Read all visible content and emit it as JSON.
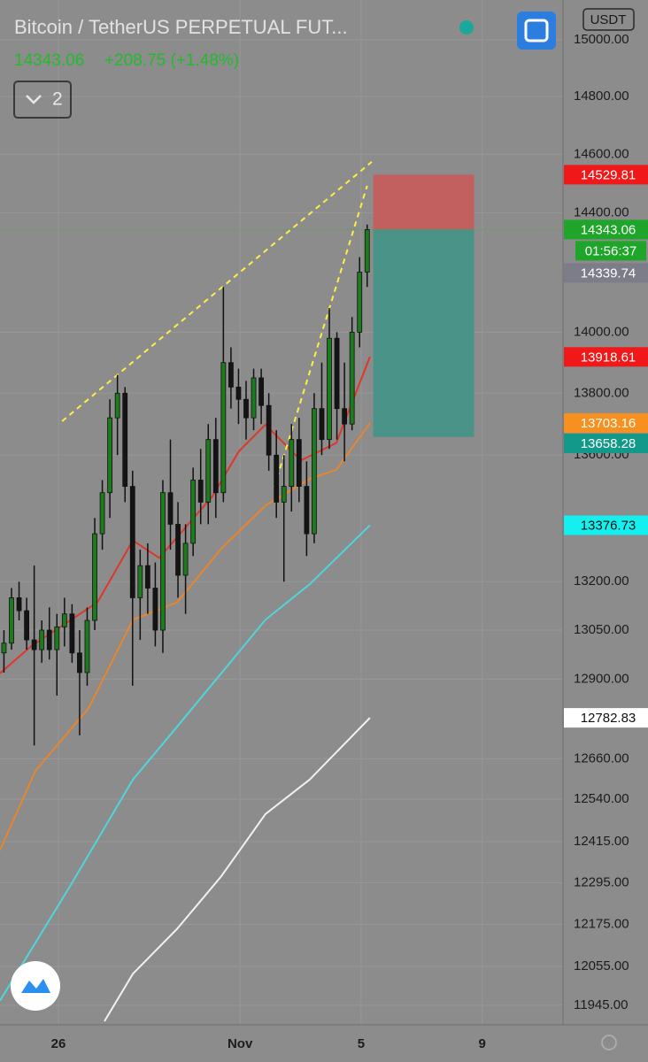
{
  "header": {
    "title": "Bitcoin / TetherUS PERPETUAL FUT...",
    "price": "14343.06",
    "change": "+208.75 (+1.48%)",
    "interval_badge": "2",
    "currency": "USDT"
  },
  "chart_data": {
    "type": "candlestick",
    "x": [
      24.2,
      24.45,
      24.7,
      24.95,
      25.2,
      25.45,
      25.7,
      25.95,
      26.2,
      26.45,
      26.7,
      26.95,
      27.2,
      27.45,
      27.7,
      27.95,
      28.2,
      28.45,
      28.7,
      28.95,
      29.2,
      29.45,
      29.7,
      29.95,
      30.2,
      30.45,
      30.7,
      30.95,
      31.2,
      31.45,
      31.7,
      31.95,
      32.2,
      32.45,
      32.7,
      32.95,
      33.2,
      33.45,
      33.7,
      33.95,
      34.2,
      34.45,
      34.7,
      34.95,
      35.2,
      35.45,
      35.7,
      35.95,
      36.2
    ],
    "ohlc": [
      [
        12980,
        13050,
        12920,
        13010
      ],
      [
        13010,
        13180,
        12990,
        13150
      ],
      [
        13150,
        13200,
        13080,
        13110
      ],
      [
        13110,
        13150,
        12990,
        13020
      ],
      [
        13020,
        13250,
        12700,
        12990
      ],
      [
        12990,
        13080,
        12950,
        13050
      ],
      [
        13050,
        13120,
        12960,
        12990
      ],
      [
        12990,
        13100,
        12850,
        13060
      ],
      [
        13060,
        13150,
        13000,
        13100
      ],
      [
        13100,
        13130,
        12950,
        12980
      ],
      [
        12980,
        13050,
        12730,
        12920
      ],
      [
        12920,
        13120,
        12880,
        13080
      ],
      [
        13080,
        13400,
        13050,
        13350
      ],
      [
        13350,
        13520,
        13300,
        13480
      ],
      [
        13480,
        13780,
        13400,
        13720
      ],
      [
        13720,
        13860,
        13600,
        13800
      ],
      [
        13800,
        13820,
        13450,
        13500
      ],
      [
        13500,
        13550,
        12880,
        13150
      ],
      [
        13150,
        13300,
        13020,
        13250
      ],
      [
        13250,
        13320,
        13100,
        13180
      ],
      [
        13180,
        13260,
        13000,
        13050
      ],
      [
        13050,
        13520,
        12980,
        13480
      ],
      [
        13480,
        13650,
        13300,
        13380
      ],
      [
        13380,
        13450,
        13150,
        13220
      ],
      [
        13220,
        13380,
        13100,
        13320
      ],
      [
        13320,
        13560,
        13280,
        13520
      ],
      [
        13520,
        13620,
        13380,
        13450
      ],
      [
        13450,
        13700,
        13380,
        13650
      ],
      [
        13650,
        13720,
        13400,
        13480
      ],
      [
        13480,
        14150,
        13450,
        13900
      ],
      [
        13900,
        13950,
        13750,
        13820
      ],
      [
        13820,
        13880,
        13700,
        13780
      ],
      [
        13780,
        13840,
        13650,
        13720
      ],
      [
        13720,
        13880,
        13680,
        13850
      ],
      [
        13850,
        13880,
        13700,
        13760
      ],
      [
        13760,
        13800,
        13550,
        13600
      ],
      [
        13600,
        13680,
        13400,
        13450
      ],
      [
        13450,
        13600,
        13200,
        13500
      ],
      [
        13500,
        13700,
        13420,
        13650
      ],
      [
        13650,
        13720,
        13450,
        13500
      ],
      [
        13500,
        13580,
        13280,
        13350
      ],
      [
        13350,
        13800,
        13320,
        13750
      ],
      [
        13750,
        13900,
        13600,
        13650
      ],
      [
        13650,
        14080,
        13620,
        13980
      ],
      [
        13980,
        14000,
        13650,
        13750
      ],
      [
        13750,
        13900,
        13580,
        13700
      ],
      [
        13700,
        14050,
        13680,
        14000
      ],
      [
        14000,
        14250,
        13950,
        14200
      ],
      [
        14200,
        14360,
        14150,
        14343.06
      ]
    ],
    "up_color": "#1d7a1d",
    "down_color": "#141414",
    "log_scale": true,
    "grid": true,
    "ylim": [
      11890,
      15141
    ],
    "yticks": [
      {
        "value": 15000,
        "label": "15000.00"
      },
      {
        "value": 14800,
        "label": "14800.00"
      },
      {
        "value": 14600,
        "label": "14600.00"
      },
      {
        "value": 14400,
        "label": "14400.00"
      },
      {
        "value": 14000,
        "label": "14000.00"
      },
      {
        "value": 13800,
        "label": "13800.00"
      },
      {
        "value": 13600,
        "label": "13600.00"
      },
      {
        "value": 13200,
        "label": "13200.00"
      },
      {
        "value": 13050,
        "label": "13050.00"
      },
      {
        "value": 12900,
        "label": "12900.00"
      },
      {
        "value": 12660,
        "label": "12660.00"
      },
      {
        "value": 12540,
        "label": "12540.00"
      },
      {
        "value": 12415,
        "label": "12415.00"
      },
      {
        "value": 12295,
        "label": "12295.00"
      },
      {
        "value": 12175,
        "label": "12175.00"
      },
      {
        "value": 12055,
        "label": "12055.00"
      },
      {
        "value": 11945,
        "label": "11945.00"
      }
    ],
    "xlim": [
      24.07,
      42.67
    ],
    "xticks": [
      {
        "value": 26,
        "label": "26"
      },
      {
        "value": 32,
        "label": "Nov"
      },
      {
        "value": 36,
        "label": "5"
      },
      {
        "value": 40,
        "label": "9"
      }
    ],
    "moving_averages": [
      {
        "color": "#e0362a",
        "x": [
          24.07,
          25.09,
          27.29,
          28.46,
          29.33,
          31.09,
          31.96,
          32.84,
          34.01,
          35.18,
          36.29
        ],
        "values": [
          12918,
          13000,
          13136,
          13329,
          13274,
          13469,
          13612,
          13698,
          13583,
          13639,
          13918.61
        ]
      },
      {
        "color": "#e8862e",
        "x": [
          24.07,
          25.24,
          26.99,
          28.46,
          29.92,
          31.38,
          32.84,
          34.3,
          35.18,
          36.29
        ],
        "values": [
          12390,
          12624,
          12811,
          13082,
          13136,
          13303,
          13439,
          13524,
          13553,
          13703.16
        ]
      },
      {
        "color": "#4fd6dc",
        "x": [
          24.07,
          26.41,
          28.46,
          29.92,
          31.38,
          32.84,
          34.3,
          36.29
        ],
        "values": [
          11958,
          12289,
          12598,
          12756,
          12918,
          13082,
          13192,
          13376.73
        ]
      },
      {
        "color": "#f2f2f2",
        "x": [
          27.52,
          28.46,
          29.92,
          31.38,
          32.84,
          34.3,
          36.29
        ],
        "values": [
          11900,
          12034,
          12162,
          12314,
          12496,
          12598,
          12782.83
        ]
      }
    ],
    "trendlines": [
      {
        "color": "#ffee44",
        "x": [
          26.12,
          36.35
        ],
        "values": [
          13709,
          14574
        ]
      },
      {
        "color": "#ffee44",
        "x": [
          33.13,
          36.2
        ],
        "values": [
          13498,
          14492
        ]
      }
    ],
    "position": {
      "x": [
        36.4,
        39.73
      ],
      "stop": 14529.81,
      "entry": 14343.06,
      "target": 13658.28,
      "stop_color": "#c85a5a",
      "target_color": "#3e9488"
    },
    "price_tags": [
      {
        "value": 14529.81,
        "color": "#f01818",
        "text_color": "#ffffff"
      },
      {
        "value": 14343.06,
        "color": "#1ea52a",
        "text_color": "#ffffff"
      },
      {
        "value": 14339.74,
        "color": "#7d7d8a",
        "text_color": "#ffffff"
      },
      {
        "value": 13918.61,
        "color": "#f01818",
        "text_color": "#ffffff"
      },
      {
        "value": 13703.16,
        "color": "#f7901e",
        "text_color": "#ffffff"
      },
      {
        "value": 13658.28,
        "color": "#12998a",
        "text_color": "#ffffff"
      },
      {
        "value": 13376.73,
        "color": "#14f0f0",
        "text_color": "#101010"
      },
      {
        "value": 12782.83,
        "color": "#ffffff",
        "text_color": "#101010"
      }
    ],
    "countdown": "01:56:37"
  }
}
